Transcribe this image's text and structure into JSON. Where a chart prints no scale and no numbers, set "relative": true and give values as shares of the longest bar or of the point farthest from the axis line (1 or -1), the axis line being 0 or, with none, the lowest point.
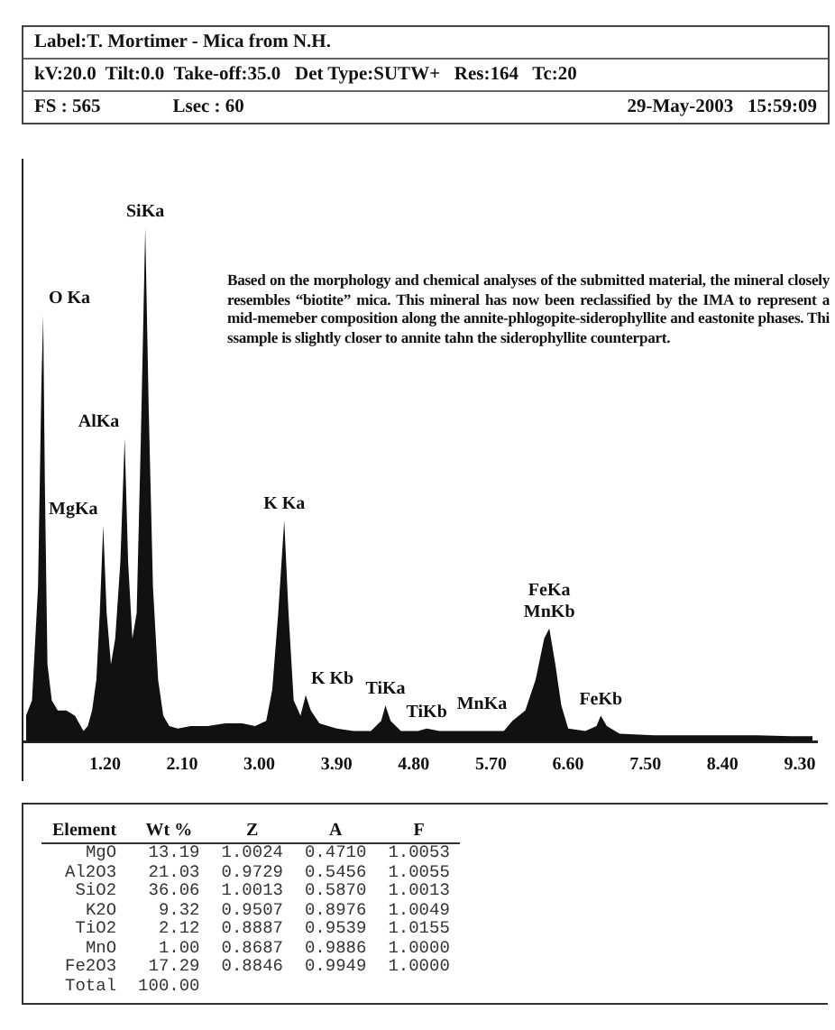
{
  "chart_data": [
    {
      "type": "area",
      "title": "Label:T. Mortimer - Mica from N.H.",
      "subtitle": "kV:20.0  Tilt:0.0  Take-off:35.0   Det Type:SUTW+   Res:164   Tc:20",
      "relative": true,
      "color": "#111111",
      "grid": false,
      "legend": false,
      "marker": "none",
      "x": [
        0.28,
        0.35,
        0.42,
        0.46,
        0.48,
        0.5,
        0.53,
        0.58,
        0.65,
        0.75,
        0.85,
        0.95,
        1.0,
        1.05,
        1.1,
        1.14,
        1.18,
        1.22,
        1.27,
        1.32,
        1.38,
        1.43,
        1.47,
        1.52,
        1.57,
        1.62,
        1.67,
        1.71,
        1.76,
        1.82,
        1.88,
        1.95,
        2.05,
        2.2,
        2.4,
        2.6,
        2.8,
        2.95,
        3.08,
        3.15,
        3.22,
        3.29,
        3.34,
        3.4,
        3.48,
        3.54,
        3.6,
        3.7,
        3.9,
        4.1,
        4.3,
        4.42,
        4.47,
        4.53,
        4.65,
        4.85,
        4.95,
        5.1,
        5.4,
        5.7,
        5.85,
        5.95,
        6.1,
        6.22,
        6.32,
        6.38,
        6.45,
        6.52,
        6.6,
        6.8,
        6.93,
        6.98,
        7.05,
        7.2,
        7.6,
        8.0,
        8.4,
        8.8,
        9.2,
        9.45
      ],
      "values": [
        0.05,
        0.08,
        0.3,
        0.7,
        0.83,
        0.5,
        0.15,
        0.08,
        0.06,
        0.06,
        0.05,
        0.02,
        0.03,
        0.06,
        0.12,
        0.25,
        0.42,
        0.25,
        0.15,
        0.2,
        0.35,
        0.59,
        0.35,
        0.2,
        0.25,
        0.6,
        1.0,
        0.65,
        0.3,
        0.12,
        0.05,
        0.03,
        0.025,
        0.03,
        0.03,
        0.035,
        0.035,
        0.03,
        0.04,
        0.1,
        0.25,
        0.43,
        0.25,
        0.08,
        0.05,
        0.09,
        0.06,
        0.035,
        0.025,
        0.02,
        0.02,
        0.04,
        0.07,
        0.04,
        0.02,
        0.02,
        0.025,
        0.02,
        0.02,
        0.02,
        0.02,
        0.04,
        0.06,
        0.12,
        0.2,
        0.22,
        0.15,
        0.07,
        0.025,
        0.02,
        0.03,
        0.05,
        0.03,
        0.015,
        0.012,
        0.012,
        0.012,
        0.012,
        0.01,
        0.01
      ],
      "xlim": [
        0.25,
        9.5
      ],
      "xticks": [
        {
          "value": 1.2,
          "label": "1.20"
        },
        {
          "value": 2.1,
          "label": "2.10"
        },
        {
          "value": 3.0,
          "label": "3.00"
        },
        {
          "value": 3.9,
          "label": "3.90"
        },
        {
          "value": 4.8,
          "label": "4.80"
        },
        {
          "value": 5.7,
          "label": "5.70"
        },
        {
          "value": 6.6,
          "label": "6.60"
        },
        {
          "value": 7.5,
          "label": "7.50"
        },
        {
          "value": 8.4,
          "label": "8.40"
        },
        {
          "value": 9.3,
          "label": "9.30"
        }
      ],
      "annotations": [
        "FS : 565",
        "Lsec : 60",
        "29-May-2003   15:59:09",
        "Based on the morphology and chemical analyses of the submitted material, the mineral closely resembles “biotite” mica. This mineral has now been reclassified by the IMA to represent a mid-memeber composition along the annite-phlogopite-siderophyllite and eastonite phases. Thi ssample is slightly closer to annite tahn the siderophyllite counterpart.",
        {
          "text": "SiKa",
          "x": 1.67,
          "y": 1.0
        },
        {
          "text": "O Ka",
          "x": 0.48,
          "y": 0.83
        },
        {
          "text": "AlKa",
          "x": 1.43,
          "y": 0.59
        },
        {
          "text": "MgKa",
          "x": 1.18,
          "y": 0.42
        },
        {
          "text": "K Ka",
          "x": 3.29,
          "y": 0.43
        },
        {
          "text": "K Kb",
          "x": 3.54,
          "y": 0.09
        },
        {
          "text": "TiKa",
          "x": 4.47,
          "y": 0.07
        },
        {
          "text": "TiKb",
          "x": 4.95,
          "y": 0.025
        },
        {
          "text": "MnKa",
          "x": 5.95,
          "y": 0.04
        },
        {
          "text": "FeKa",
          "x": 6.38,
          "y": 0.22
        },
        {
          "text": "MnKb",
          "x": 6.38,
          "y": 0.22
        },
        {
          "text": "FeKb",
          "x": 6.98,
          "y": 0.05
        }
      ]
    },
    {
      "type": "other",
      "xlabel": "Element",
      "categories": [
        "MgO",
        "Al2O3",
        "SiO2",
        "K2O",
        "TiO2",
        "MnO",
        "Fe2O3",
        "Total"
      ],
      "series": [
        {
          "name": "Wt %",
          "values": [
            13.19,
            21.03,
            36.06,
            9.32,
            2.12,
            1.0,
            17.29,
            100.0
          ],
          "value_labels": [
            "13.19",
            "21.03",
            "36.06",
            "9.32",
            "2.12",
            "1.00",
            "17.29",
            "100.00"
          ]
        },
        {
          "name": "Z",
          "values": [
            1.0024,
            0.9729,
            1.0013,
            0.9507,
            0.8887,
            0.8687,
            0.8846,
            null
          ],
          "value_labels": [
            "1.0024",
            "0.9729",
            "1.0013",
            "0.9507",
            "0.8887",
            "0.8687",
            "0.8846",
            null
          ]
        },
        {
          "name": "A",
          "values": [
            0.471,
            0.5456,
            0.587,
            0.8976,
            0.9539,
            0.9886,
            0.9949,
            null
          ],
          "value_labels": [
            "0.4710",
            "0.5456",
            "0.5870",
            "0.8976",
            "0.9539",
            "0.9886",
            "0.9949",
            null
          ]
        },
        {
          "name": "F",
          "values": [
            1.0053,
            1.0055,
            1.0013,
            1.0049,
            1.0155,
            1.0,
            1.0,
            null
          ],
          "value_labels": [
            "1.0053",
            "1.0055",
            "1.0013",
            "1.0049",
            "1.0155",
            "1.0000",
            "1.0000",
            null
          ]
        }
      ]
    }
  ]
}
